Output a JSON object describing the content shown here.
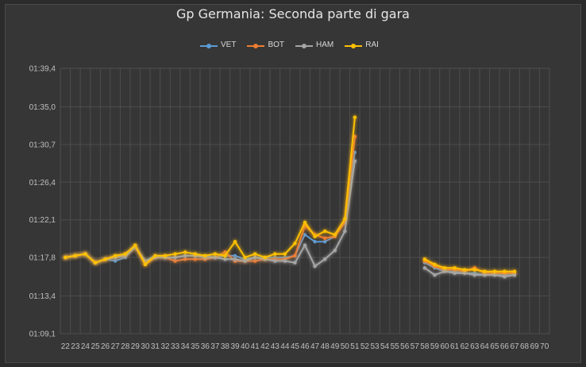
{
  "chart_data": {
    "type": "line",
    "title": "Gp Germania: Seconda parte di gara",
    "legend_position": "top",
    "grid": true,
    "x_categories": [
      "22",
      "23",
      "24",
      "25",
      "26",
      "27",
      "28",
      "29",
      "30",
      "31",
      "32",
      "33",
      "34",
      "35",
      "36",
      "37",
      "38",
      "39",
      "40",
      "41",
      "42",
      "43",
      "44",
      "45",
      "46",
      "47",
      "48",
      "49",
      "50",
      "51",
      "52",
      "53",
      "54",
      "55",
      "56",
      "57",
      "58",
      "59",
      "60",
      "61",
      "62",
      "63",
      "64",
      "65",
      "66",
      "67",
      "68",
      "69",
      "70"
    ],
    "y_tick_labels": [
      "01:09,1",
      "01:13,4",
      "01:17,8",
      "01:22,1",
      "01:26,4",
      "01:30,7",
      "01:35,0",
      "01:39,4"
    ],
    "y_tick_seconds": [
      69.1,
      73.4,
      77.8,
      82.1,
      86.4,
      90.7,
      95.0,
      99.4
    ],
    "ylim_seconds": [
      69.1,
      99.4
    ],
    "series": [
      {
        "name": "VET",
        "color": "#5b9bd5",
        "glow": false,
        "values": [
          77.8,
          78.0,
          78.2,
          77.2,
          77.6,
          77.4,
          77.8,
          79.0,
          77.4,
          78.0,
          77.8,
          77.8,
          78.0,
          78.0,
          78.0,
          77.8,
          78.0,
          78.0,
          77.6,
          77.8,
          77.8,
          77.8,
          77.8,
          78.0,
          80.4,
          79.6,
          79.6,
          80.2,
          81.8,
          89.8,
          null,
          null,
          null,
          null,
          null,
          null,
          77.2,
          76.6,
          76.2,
          76.2,
          76.0,
          76.0,
          75.8,
          75.8,
          75.8,
          75.8,
          null,
          null,
          null
        ]
      },
      {
        "name": "BOT",
        "color": "#ed7d31",
        "glow": true,
        "values": [
          77.8,
          78.0,
          78.2,
          77.2,
          77.6,
          77.8,
          78.0,
          79.0,
          77.0,
          77.8,
          77.8,
          77.4,
          77.6,
          77.6,
          77.6,
          77.8,
          78.4,
          77.4,
          77.4,
          77.4,
          77.6,
          77.6,
          77.6,
          78.0,
          81.4,
          80.4,
          80.0,
          80.2,
          81.8,
          91.6,
          null,
          null,
          null,
          null,
          null,
          null,
          77.4,
          76.8,
          76.4,
          76.4,
          76.2,
          76.6,
          76.0,
          76.0,
          76.0,
          76.0,
          null,
          null,
          null
        ]
      },
      {
        "name": "HAM",
        "color": "#a5a5a5",
        "glow": true,
        "values": [
          77.8,
          78.0,
          78.2,
          77.2,
          77.6,
          77.8,
          78.0,
          79.0,
          77.4,
          77.8,
          77.8,
          77.8,
          78.0,
          78.0,
          77.8,
          77.8,
          77.6,
          77.6,
          77.4,
          77.8,
          77.6,
          77.4,
          77.4,
          77.2,
          79.2,
          76.8,
          77.6,
          78.6,
          80.8,
          88.8,
          null,
          null,
          null,
          null,
          null,
          null,
          76.6,
          75.8,
          76.2,
          76.0,
          76.0,
          75.8,
          75.8,
          75.8,
          75.6,
          75.8,
          null,
          null,
          null
        ]
      },
      {
        "name": "RAI",
        "color": "#ffc000",
        "glow": true,
        "values": [
          77.8,
          78.0,
          78.2,
          77.2,
          77.6,
          78.0,
          78.2,
          79.2,
          77.0,
          78.0,
          78.0,
          78.2,
          78.4,
          78.2,
          78.0,
          78.2,
          78.0,
          79.6,
          77.8,
          78.2,
          77.8,
          78.2,
          78.2,
          79.4,
          81.8,
          80.2,
          80.8,
          80.4,
          82.2,
          93.8,
          null,
          null,
          null,
          null,
          null,
          null,
          77.6,
          77.0,
          76.6,
          76.6,
          76.4,
          76.4,
          76.2,
          76.2,
          76.2,
          76.2,
          null,
          null,
          null
        ]
      }
    ]
  }
}
